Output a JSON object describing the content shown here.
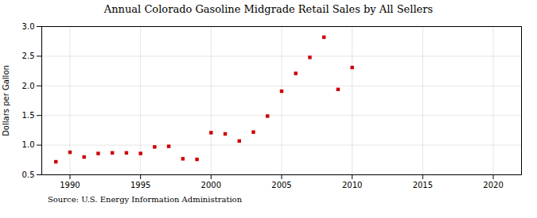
{
  "chart_data": {
    "type": "scatter",
    "title": "Annual Colorado Gasoline Midgrade Retail Sales by All Sellers",
    "ylabel": "Dollars per Gallon",
    "source": "Source: U.S. Energy Information Administration",
    "x": [
      1989,
      1990,
      1991,
      1992,
      1993,
      1994,
      1995,
      1996,
      1997,
      1998,
      1999,
      2000,
      2001,
      2002,
      2003,
      2004,
      2005,
      2006,
      2007,
      2008,
      2009,
      2010
    ],
    "values": [
      0.72,
      0.88,
      0.8,
      0.86,
      0.87,
      0.87,
      0.86,
      0.97,
      0.98,
      0.77,
      0.76,
      1.21,
      1.19,
      1.07,
      1.22,
      1.49,
      1.91,
      2.21,
      2.48,
      2.82,
      1.94,
      2.31
    ],
    "color": "#cc0000",
    "marker": "square",
    "xlim": [
      1988,
      2022
    ],
    "ylim": [
      0.5,
      3.0
    ],
    "xticks": [
      1990,
      1995,
      2000,
      2005,
      2010,
      2015,
      2020
    ],
    "yticks": [
      0.5,
      {
        "value": 1,
        "label": "1.0"
      },
      1.5,
      {
        "value": 2,
        "label": "2.0"
      },
      2.5,
      {
        "value": 3,
        "label": "3.0"
      }
    ],
    "grid": true
  }
}
